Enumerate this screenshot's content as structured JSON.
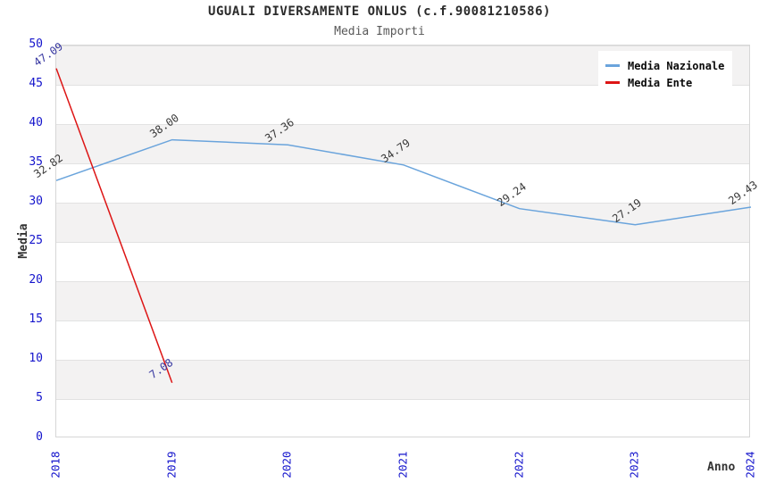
{
  "header": {
    "title": "UGUALI DIVERSAMENTE ONLUS (c.f.90081210586)",
    "subtitle": "Media Importi"
  },
  "chart_data": {
    "type": "line",
    "title": "UGUALI DIVERSAMENTE ONLUS (c.f.90081210586)",
    "subtitle": "Media Importi",
    "xlabel": "Anno",
    "ylabel": "Media",
    "x": [
      "2018",
      "2019",
      "2020",
      "2021",
      "2022",
      "2023",
      "2024"
    ],
    "series": [
      {
        "name": "Media Nazionale",
        "color": "#6aa4dc",
        "label_color": "#3a3a3a",
        "values": [
          32.82,
          38.0,
          37.36,
          34.79,
          29.24,
          27.19,
          29.43
        ],
        "labels": [
          "32.82",
          "38.00",
          "37.36",
          "34.79",
          "29.24",
          "27.19",
          "29.43"
        ]
      },
      {
        "name": "Media Ente",
        "color": "#dd1515",
        "label_color": "#3636a0",
        "values": [
          47.09,
          7.08,
          null,
          null,
          null,
          null,
          null
        ],
        "labels": [
          "47.09",
          "7.08",
          null,
          null,
          null,
          null,
          null
        ]
      }
    ],
    "ylim": [
      0,
      50
    ],
    "ytick_step": 5,
    "grid": "horizontal-bands",
    "legend_position": "top-right",
    "colors": {
      "tick_label": "#1414cc",
      "band_gray": "#f3f2f2",
      "gridline": "#e2e2e2",
      "plot_border": "#d6d6d6"
    }
  }
}
